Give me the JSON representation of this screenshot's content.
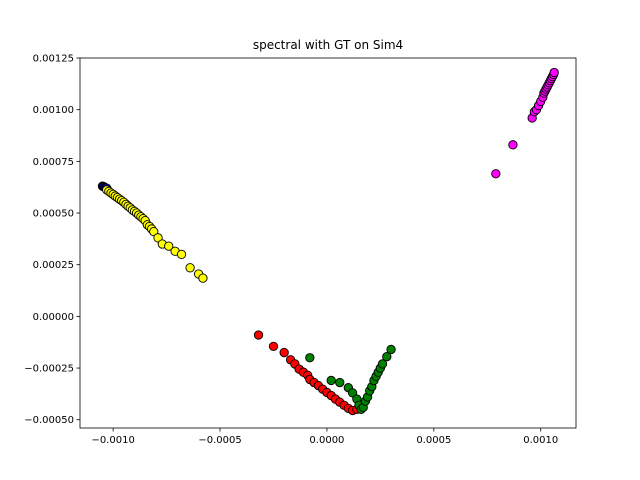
{
  "chart_data": {
    "type": "scatter",
    "title": "spectral with GT on Sim4",
    "xlabel": "",
    "ylabel": "",
    "xlim": [
      -0.001155,
      0.001165
    ],
    "ylim": [
      -0.00054,
      0.00125
    ],
    "grid": false,
    "legend": "none",
    "x_ticks": [
      {
        "value": -0.001,
        "label": "−0.0010"
      },
      {
        "value": -0.0005,
        "label": "−0.0005"
      },
      {
        "value": 0.0,
        "label": "0.0000"
      },
      {
        "value": 0.0005,
        "label": "0.0005"
      },
      {
        "value": 0.001,
        "label": "0.0010"
      }
    ],
    "y_ticks": [
      {
        "value": -0.0005,
        "label": "−0.00050"
      },
      {
        "value": -0.00025,
        "label": "−0.00025"
      },
      {
        "value": 0.0,
        "label": "0.00000"
      },
      {
        "value": 0.00025,
        "label": "0.00025"
      },
      {
        "value": 0.0005,
        "label": "0.00050"
      },
      {
        "value": 0.00075,
        "label": "0.00075"
      },
      {
        "value": 0.001,
        "label": "0.00100"
      },
      {
        "value": 0.00125,
        "label": "0.00125"
      }
    ],
    "series": [
      {
        "color": "#0000ff",
        "points": [
          [
            -0.00105,
            0.00063
          ],
          [
            -0.001045,
            0.000628
          ],
          [
            -0.00104,
            0.000625
          ],
          [
            -0.001035,
            0.000622
          ],
          [
            -0.00103,
            0.00062
          ]
        ]
      },
      {
        "color": "#ffff00",
        "points": [
          [
            -0.00103,
            0.000612
          ],
          [
            -0.00102,
            0.000605
          ],
          [
            -0.00101,
            0.000597
          ],
          [
            -0.001,
            0.00059
          ],
          [
            -0.00099,
            0.000582
          ],
          [
            -0.00098,
            0.000575
          ],
          [
            -0.00097,
            0.000567
          ],
          [
            -0.00096,
            0.00056
          ],
          [
            -0.00095,
            0.000552
          ],
          [
            -0.00094,
            0.000542
          ],
          [
            -0.00093,
            0.000533
          ],
          [
            -0.00092,
            0.000525
          ],
          [
            -0.00091,
            0.000515
          ],
          [
            -0.0009,
            0.000508
          ],
          [
            -0.00089,
            0.0005
          ],
          [
            -0.00088,
            0.00049
          ],
          [
            -0.00087,
            0.000482
          ],
          [
            -0.00086,
            0.000473
          ],
          [
            -0.00085,
            0.000463
          ],
          [
            -0.00084,
            0.000443
          ],
          [
            -0.00083,
            0.000435
          ],
          [
            -0.00082,
            0.000423
          ],
          [
            -0.00081,
            0.00041
          ],
          [
            -0.00079,
            0.00038
          ],
          [
            -0.00077,
            0.00035
          ],
          [
            -0.00074,
            0.00034
          ],
          [
            -0.00071,
            0.000315
          ],
          [
            -0.00068,
            0.0003
          ],
          [
            -0.00064,
            0.000235
          ],
          [
            -0.0006,
            0.000205
          ],
          [
            -0.00058,
            0.000185
          ]
        ]
      },
      {
        "color": "#ff0000",
        "points": [
          [
            -0.00032,
            -9e-05
          ],
          [
            -0.00025,
            -0.000145
          ],
          [
            -0.0002,
            -0.000175
          ],
          [
            -0.00017,
            -0.00021
          ],
          [
            -0.00015,
            -0.00023
          ],
          [
            -0.00013,
            -0.000255
          ],
          [
            -0.00011,
            -0.00027
          ],
          [
            -9e-05,
            -0.000285
          ],
          [
            -8e-05,
            -0.000305
          ],
          [
            -6e-05,
            -0.00032
          ],
          [
            -4e-05,
            -0.000335
          ],
          [
            -2e-05,
            -0.000352
          ],
          [
            0.0,
            -0.000368
          ],
          [
            2e-05,
            -0.000383
          ],
          [
            4e-05,
            -0.0004
          ],
          [
            6e-05,
            -0.000415
          ],
          [
            8e-05,
            -0.00043
          ],
          [
            0.0001,
            -0.000445
          ],
          [
            0.00012,
            -0.000455
          ],
          [
            0.00014,
            -0.00045
          ]
        ]
      },
      {
        "color": "#008000",
        "points": [
          [
            -8e-05,
            -0.0002
          ],
          [
            2e-05,
            -0.00031
          ],
          [
            6e-05,
            -0.00032
          ],
          [
            0.0001,
            -0.000345
          ],
          [
            0.00012,
            -0.00037
          ],
          [
            0.00014,
            -0.0004
          ],
          [
            0.00015,
            -0.00043
          ],
          [
            0.00016,
            -0.00045
          ],
          [
            0.00017,
            -0.00044
          ],
          [
            0.00018,
            -0.00041
          ],
          [
            0.00019,
            -0.00039
          ],
          [
            0.0002,
            -0.00036
          ],
          [
            0.00021,
            -0.00034
          ],
          [
            0.00022,
            -0.00031
          ],
          [
            0.00023,
            -0.00029
          ],
          [
            0.00024,
            -0.00027
          ],
          [
            0.00025,
            -0.00025
          ],
          [
            0.00026,
            -0.00023
          ],
          [
            0.00028,
            -0.000195
          ],
          [
            0.0003,
            -0.00016
          ]
        ]
      },
      {
        "color": "#ff00ff",
        "points": [
          [
            0.00079,
            0.00069
          ],
          [
            0.00087,
            0.00083
          ],
          [
            0.00096,
            0.00096
          ],
          [
            0.00097,
            0.00099
          ],
          [
            0.00098,
            0.001
          ],
          [
            0.00099,
            0.00102
          ],
          [
            0.001,
            0.00104
          ],
          [
            0.00101,
            0.00106
          ],
          [
            0.001015,
            0.00108
          ],
          [
            0.00102,
            0.00109
          ],
          [
            0.001025,
            0.0011
          ],
          [
            0.00103,
            0.00111
          ],
          [
            0.001035,
            0.00112
          ],
          [
            0.00104,
            0.00113
          ],
          [
            0.001045,
            0.00114
          ],
          [
            0.00105,
            0.00115
          ],
          [
            0.001055,
            0.00116
          ],
          [
            0.00106,
            0.00117
          ],
          [
            0.001063,
            0.00118
          ]
        ]
      }
    ]
  }
}
